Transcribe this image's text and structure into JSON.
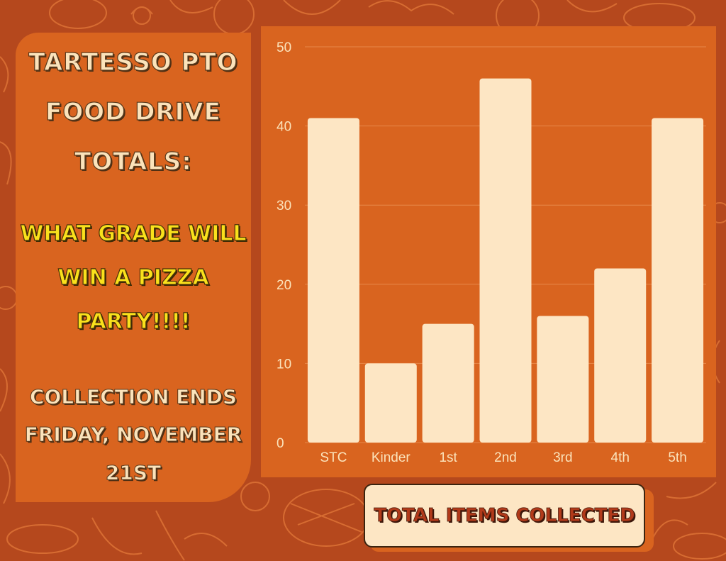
{
  "poster": {
    "title_lines": [
      "Tartesso PTO",
      "Food Drive",
      "Totals:"
    ],
    "question_lines": [
      "What grade will",
      "win a pizza",
      "party!!!!"
    ],
    "deadline_lines": [
      "Collection ends",
      "Friday, November",
      "21st"
    ]
  },
  "colors": {
    "background": "#b5481d",
    "panel": "#d9641f",
    "bar": "#fde6c4",
    "title_text": "#fbe3bb",
    "question_text": "#f9e11c",
    "legend_text": "#b23a1a"
  },
  "chart_data": {
    "type": "bar",
    "categories": [
      "STC",
      "Kinder",
      "1st",
      "2nd",
      "3rd",
      "4th",
      "5th"
    ],
    "series": [
      {
        "name": "Total Items Collected",
        "values": [
          41,
          10,
          15,
          46,
          16,
          22,
          41
        ]
      }
    ],
    "ylim": [
      0,
      50
    ],
    "yticks": [
      0,
      10,
      20,
      30,
      40,
      50
    ],
    "grid": true,
    "legend_position": "bottom-right",
    "title": "",
    "xlabel": "",
    "ylabel": ""
  }
}
